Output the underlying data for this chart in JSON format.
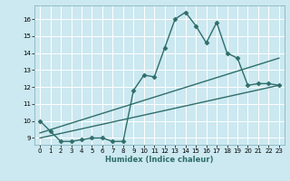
{
  "xlabel": "Humidex (Indice chaleur)",
  "bg_color": "#cce8f0",
  "grid_color": "#ffffff",
  "line_color": "#2e6e6a",
  "xlim": [
    -0.5,
    23.5
  ],
  "ylim": [
    8.6,
    16.8
  ],
  "yticks": [
    9,
    10,
    11,
    12,
    13,
    14,
    15,
    16
  ],
  "xticks": [
    0,
    1,
    2,
    3,
    4,
    5,
    6,
    7,
    8,
    9,
    10,
    11,
    12,
    13,
    14,
    15,
    16,
    17,
    18,
    19,
    20,
    21,
    22,
    23
  ],
  "series1_x": [
    0,
    1,
    2,
    3,
    4,
    5,
    6,
    7,
    8,
    9,
    10,
    11,
    12,
    13,
    14,
    15,
    16,
    17,
    18,
    19,
    20,
    21,
    22,
    23
  ],
  "series1_y": [
    10.0,
    9.4,
    8.8,
    8.8,
    8.9,
    9.0,
    9.0,
    8.8,
    8.8,
    11.8,
    12.7,
    12.6,
    14.3,
    16.0,
    16.4,
    15.6,
    14.6,
    15.8,
    14.0,
    13.7,
    12.1,
    12.2,
    12.2,
    12.1
  ],
  "series2_x": [
    0,
    23
  ],
  "series2_y": [
    9.3,
    13.7
  ],
  "series3_x": [
    0,
    23
  ],
  "series3_y": [
    9.0,
    12.1
  ],
  "marker": "D",
  "markersize": 2.5,
  "linewidth": 1.0
}
